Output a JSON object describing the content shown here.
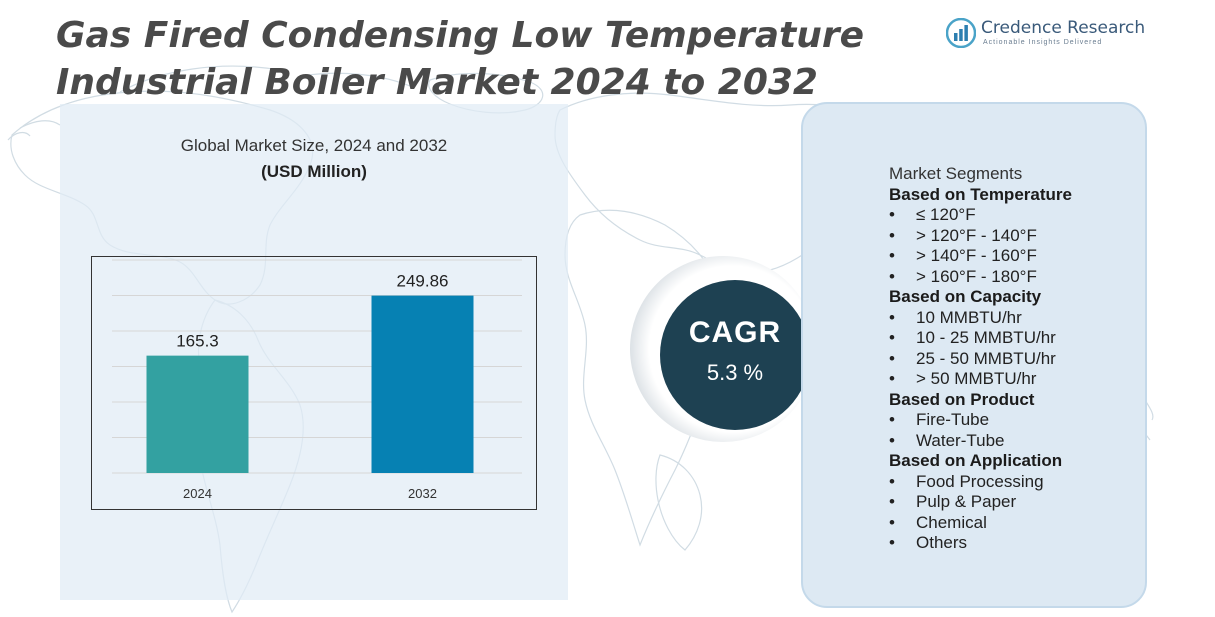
{
  "header": {
    "title_line1": "Gas Fired Condensing Low Temperature",
    "title_line2": "Industrial Boiler Market 2024 to 2032"
  },
  "logo": {
    "name": "Credence Research",
    "tagline": "Actionable Insights Delivered"
  },
  "chart": {
    "title": "Global Market Size, 2024 and 2032",
    "unit": "(USD Million)"
  },
  "chart_data": {
    "type": "bar",
    "categories": [
      "2024",
      "2032"
    ],
    "values": [
      165.3,
      249.86
    ],
    "value_labels": [
      "165.3",
      "249.86"
    ],
    "colors": [
      "#33a1a1",
      "#0681b3"
    ],
    "title": "Global Market Size, 2024 and 2032",
    "ylabel": "(USD Million)",
    "ylim": [
      0,
      300
    ],
    "grid": true,
    "legend": "none"
  },
  "cagr": {
    "label": "CAGR",
    "value": "5.3 %"
  },
  "segments": {
    "heading": "Market Segments",
    "groups": [
      {
        "title": "Based on Temperature",
        "items": [
          "≤ 120°F",
          "> 120°F - 140°F",
          "> 140°F - 160°F",
          "> 160°F - 180°F"
        ]
      },
      {
        "title": "Based on Capacity",
        "items": [
          "10 MMBTU/hr",
          "10 - 25 MMBTU/hr",
          "25 - 50 MMBTU/hr",
          "> 50 MMBTU/hr"
        ]
      },
      {
        "title": "Based on Product",
        "items": [
          "Fire-Tube",
          "Water-Tube"
        ]
      },
      {
        "title": "Based on Application",
        "items": [
          "Food Processing",
          "Pulp & Paper",
          "Chemical",
          "Others"
        ]
      }
    ],
    "bullet": "•"
  },
  "colors": {
    "title": "#4a4a4a",
    "cagr_circle": "#1e4152",
    "panel": "#dde9f3"
  }
}
